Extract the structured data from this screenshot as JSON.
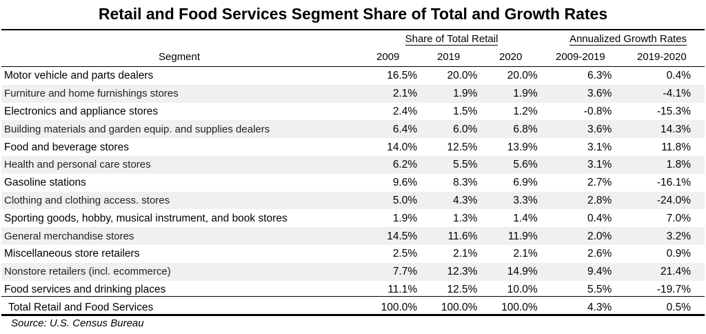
{
  "title": "Retail and Food Services Segment Share of Total and Growth Rates",
  "groups": {
    "share": "Share of Total Retail",
    "growth": "Annualized Growth Rates"
  },
  "columns": {
    "segment": "Segment",
    "y2009": "2009",
    "y2019": "2019",
    "y2020": "2020",
    "g0919": "2009-2019",
    "g1920": "2019-2020"
  },
  "rows": [
    {
      "segment": "Motor vehicle and parts dealers",
      "y2009": "16.5%",
      "y2019": "20.0%",
      "y2020": "20.0%",
      "g0919": "6.3%",
      "g1920": "0.4%"
    },
    {
      "segment": "Furniture and home furnishings stores",
      "y2009": "2.1%",
      "y2019": "1.9%",
      "y2020": "1.9%",
      "g0919": "3.6%",
      "g1920": "-4.1%"
    },
    {
      "segment": "Electronics and appliance stores",
      "y2009": "2.4%",
      "y2019": "1.5%",
      "y2020": "1.2%",
      "g0919": "-0.8%",
      "g1920": "-15.3%"
    },
    {
      "segment": "Building materials and garden equip. and supplies dealers",
      "y2009": "6.4%",
      "y2019": "6.0%",
      "y2020": "6.8%",
      "g0919": "3.6%",
      "g1920": "14.3%"
    },
    {
      "segment": "Food and beverage stores",
      "y2009": "14.0%",
      "y2019": "12.5%",
      "y2020": "13.9%",
      "g0919": "3.1%",
      "g1920": "11.8%"
    },
    {
      "segment": "Health and personal care stores",
      "y2009": "6.2%",
      "y2019": "5.5%",
      "y2020": "5.6%",
      "g0919": "3.1%",
      "g1920": "1.8%"
    },
    {
      "segment": "Gasoline stations",
      "y2009": "9.6%",
      "y2019": "8.3%",
      "y2020": "6.9%",
      "g0919": "2.7%",
      "g1920": "-16.1%"
    },
    {
      "segment": "Clothing and clothing access. stores",
      "y2009": "5.0%",
      "y2019": "4.3%",
      "y2020": "3.3%",
      "g0919": "2.8%",
      "g1920": "-24.0%"
    },
    {
      "segment": "Sporting goods, hobby, musical instrument, and book stores",
      "y2009": "1.9%",
      "y2019": "1.3%",
      "y2020": "1.4%",
      "g0919": "0.4%",
      "g1920": "7.0%"
    },
    {
      "segment": "General merchandise stores",
      "y2009": "14.5%",
      "y2019": "11.6%",
      "y2020": "11.9%",
      "g0919": "2.0%",
      "g1920": "3.2%"
    },
    {
      "segment": "Miscellaneous store retailers",
      "y2009": "2.5%",
      "y2019": "2.1%",
      "y2020": "2.1%",
      "g0919": "2.6%",
      "g1920": "0.9%"
    },
    {
      "segment": "Nonstore retailers (incl. ecommerce)",
      "y2009": "7.7%",
      "y2019": "12.3%",
      "y2020": "14.9%",
      "g0919": "9.4%",
      "g1920": "21.4%"
    },
    {
      "segment": "Food services and drinking places",
      "y2009": "11.1%",
      "y2019": "12.5%",
      "y2020": "10.0%",
      "g0919": "5.5%",
      "g1920": "-19.7%"
    }
  ],
  "total": {
    "segment": "Total Retail and Food Services",
    "y2009": "100.0%",
    "y2019": "100.0%",
    "y2020": "100.0%",
    "g0919": "4.3%",
    "g1920": "0.5%"
  },
  "source": "Source: U.S. Census Bureau"
}
